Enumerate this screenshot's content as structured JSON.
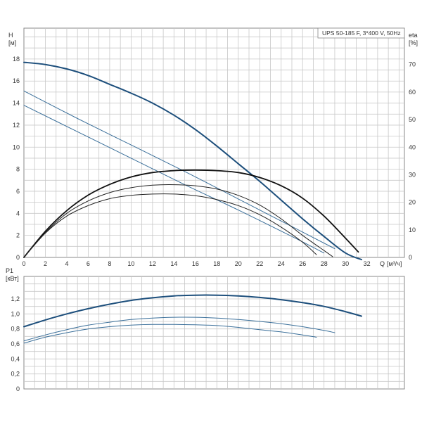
{
  "chart_data": [
    {
      "type": "line",
      "title": "UPS 50-185 F, 3*400 V, 50Hz",
      "xlabel": "Q",
      "x_unit": "[м³/ч]",
      "ylabel": "H",
      "y_unit": "[м]",
      "y2label": "eta",
      "y2_unit": "[%]",
      "xlim": [
        0,
        35.5
      ],
      "ylim": [
        0,
        20.8
      ],
      "y2lim": [
        0,
        83.2
      ],
      "xticks": [
        0,
        2,
        4,
        6,
        8,
        10,
        12,
        14,
        16,
        18,
        20,
        22,
        24,
        26,
        28,
        30,
        32
      ],
      "yticks": [
        0,
        2,
        4,
        6,
        8,
        10,
        12,
        14,
        16,
        18
      ],
      "y2ticks": [
        0,
        10,
        20,
        30,
        40,
        50,
        60,
        70
      ],
      "grid": true,
      "series": [
        {
          "kind": "head",
          "color": "#1d4f7c",
          "width": 2.0,
          "x": [
            0,
            2,
            4,
            6,
            8,
            10,
            12,
            14,
            16,
            18,
            20,
            22,
            24,
            26,
            28,
            30,
            31.5
          ],
          "y": [
            17.7,
            17.5,
            17.1,
            16.5,
            15.7,
            14.9,
            14.0,
            12.9,
            11.6,
            10.1,
            8.5,
            6.9,
            5.2,
            3.5,
            1.9,
            0.4,
            -0.2
          ]
        },
        {
          "kind": "head",
          "color": "#3a6f9a",
          "width": 1.0,
          "x": [
            0,
            5,
            10,
            15,
            20,
            25,
            29
          ],
          "y": [
            15.1,
            12.6,
            10.2,
            7.8,
            5.3,
            2.8,
            0.8
          ]
        },
        {
          "kind": "head",
          "color": "#3a6f9a",
          "width": 1.0,
          "x": [
            0,
            5,
            10,
            15,
            20,
            25,
            28
          ],
          "y": [
            13.8,
            11.4,
            9.0,
            6.6,
            4.3,
            1.9,
            0.4
          ]
        },
        {
          "kind": "efficiency",
          "color": "#111111",
          "width": 1.8,
          "x": [
            0,
            2,
            4,
            6,
            8,
            10,
            12,
            14,
            16,
            18,
            20,
            22,
            24,
            26,
            28,
            30,
            31.2
          ],
          "y": [
            0,
            9.5,
            17.0,
            22.6,
            26.5,
            29.2,
            30.8,
            31.5,
            31.7,
            31.5,
            30.8,
            29.0,
            26.0,
            21.5,
            15.0,
            7.0,
            2.0
          ]
        },
        {
          "kind": "efficiency",
          "color": "#222222",
          "width": 1.0,
          "x": [
            0,
            2,
            4,
            6,
            8,
            10,
            12,
            14,
            16,
            18,
            20,
            22,
            24,
            26,
            28,
            28.8
          ],
          "y": [
            0,
            9.0,
            16.0,
            20.5,
            23.5,
            25.3,
            26.2,
            26.4,
            26.0,
            24.8,
            22.5,
            19.0,
            14.0,
            8.0,
            2.5,
            0.3
          ]
        },
        {
          "kind": "efficiency",
          "color": "#222222",
          "width": 1.0,
          "x": [
            0,
            2,
            4,
            6,
            8,
            10,
            12,
            14,
            16,
            18,
            20,
            22,
            24,
            26,
            27.3
          ],
          "y": [
            0,
            8.8,
            15.0,
            18.8,
            21.3,
            22.5,
            23.0,
            23.0,
            22.4,
            21.0,
            18.8,
            15.5,
            11.0,
            5.5,
            1.0
          ]
        }
      ]
    },
    {
      "type": "line",
      "ylabel": "P1",
      "y_unit": "[кВт]",
      "xlim": [
        0,
        35.5
      ],
      "ylim": [
        0,
        1.5
      ],
      "yticks": [
        "0",
        "0,2",
        "0,4",
        "0,6",
        "0,8",
        "1,0",
        "1,2"
      ],
      "ytick_values": [
        0,
        0.2,
        0.4,
        0.6,
        0.8,
        1.0,
        1.2
      ],
      "grid": true,
      "series": [
        {
          "color": "#1d4f7c",
          "width": 2.0,
          "x": [
            0,
            2,
            4,
            6,
            8,
            10,
            12,
            14,
            16,
            18,
            20,
            22,
            24,
            26,
            28,
            30,
            31.5
          ],
          "y": [
            0.83,
            0.92,
            1.0,
            1.07,
            1.13,
            1.18,
            1.215,
            1.24,
            1.25,
            1.25,
            1.24,
            1.22,
            1.19,
            1.15,
            1.1,
            1.03,
            0.97
          ]
        },
        {
          "color": "#3a6f9a",
          "width": 1.0,
          "x": [
            0,
            2,
            4,
            6,
            8,
            10,
            12,
            14,
            16,
            18,
            20,
            22,
            24,
            26,
            28,
            29
          ],
          "y": [
            0.64,
            0.72,
            0.79,
            0.85,
            0.89,
            0.925,
            0.945,
            0.955,
            0.955,
            0.945,
            0.925,
            0.9,
            0.87,
            0.83,
            0.78,
            0.75
          ]
        },
        {
          "color": "#3a6f9a",
          "width": 1.0,
          "x": [
            0,
            2,
            4,
            6,
            8,
            10,
            12,
            14,
            16,
            18,
            20,
            22,
            24,
            26,
            27.3
          ],
          "y": [
            0.61,
            0.69,
            0.75,
            0.8,
            0.83,
            0.85,
            0.86,
            0.86,
            0.855,
            0.845,
            0.82,
            0.79,
            0.76,
            0.72,
            0.69
          ]
        }
      ]
    }
  ]
}
